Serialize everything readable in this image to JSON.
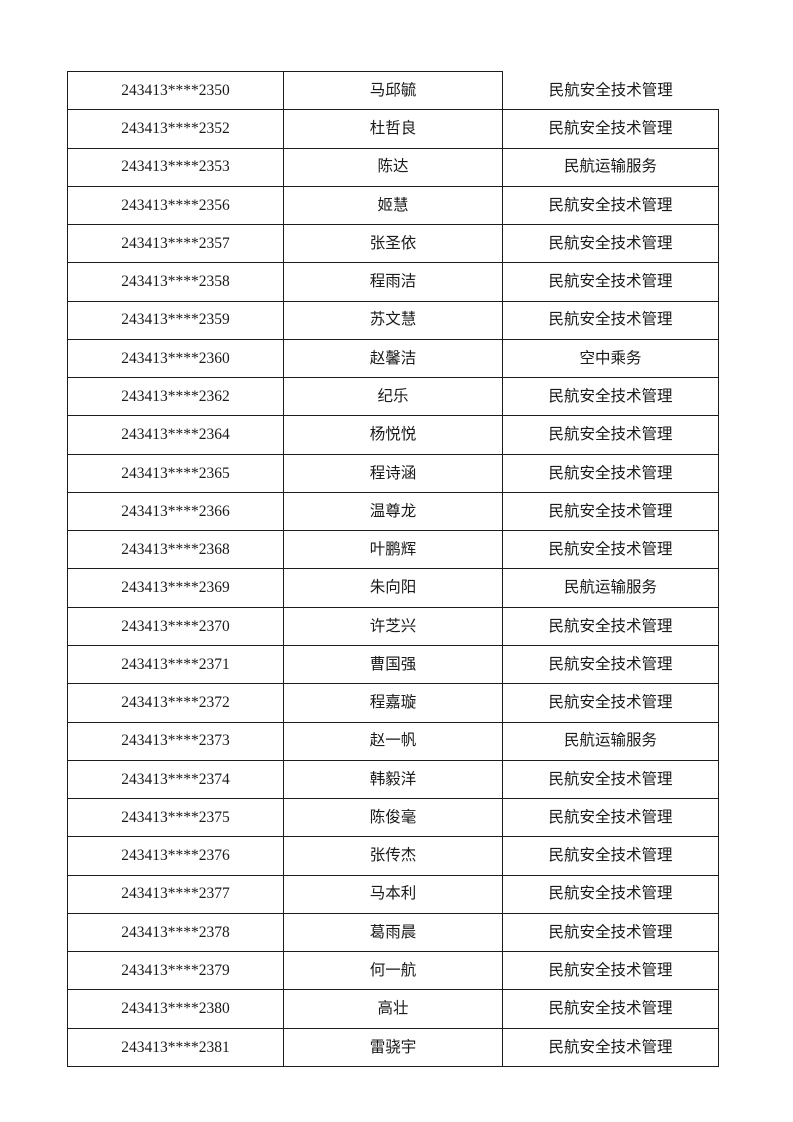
{
  "page": {
    "kind": "document-table-page"
  },
  "colors": {
    "page_background": "#ffffff",
    "border": "#1c1c1c",
    "text": "#1a1a1a"
  },
  "table": {
    "columns": [
      "id",
      "name",
      "major"
    ],
    "rows": [
      {
        "id": "243413****2350",
        "name": "马邱毓",
        "major": "民航安全技术管理"
      },
      {
        "id": "243413****2352",
        "name": "杜哲良",
        "major": "民航安全技术管理"
      },
      {
        "id": "243413****2353",
        "name": "陈达",
        "major": "民航运输服务"
      },
      {
        "id": "243413****2356",
        "name": "姬慧",
        "major": "民航安全技术管理"
      },
      {
        "id": "243413****2357",
        "name": "张圣依",
        "major": "民航安全技术管理"
      },
      {
        "id": "243413****2358",
        "name": "程雨洁",
        "major": "民航安全技术管理"
      },
      {
        "id": "243413****2359",
        "name": "苏文慧",
        "major": "民航安全技术管理"
      },
      {
        "id": "243413****2360",
        "name": "赵馨洁",
        "major": "空中乘务"
      },
      {
        "id": "243413****2362",
        "name": "纪乐",
        "major": "民航安全技术管理"
      },
      {
        "id": "243413****2364",
        "name": "杨悦悦",
        "major": "民航安全技术管理"
      },
      {
        "id": "243413****2365",
        "name": "程诗涵",
        "major": "民航安全技术管理"
      },
      {
        "id": "243413****2366",
        "name": "温尊龙",
        "major": "民航安全技术管理"
      },
      {
        "id": "243413****2368",
        "name": "叶鹏辉",
        "major": "民航安全技术管理"
      },
      {
        "id": "243413****2369",
        "name": "朱向阳",
        "major": "民航运输服务"
      },
      {
        "id": "243413****2370",
        "name": "许芝兴",
        "major": "民航安全技术管理"
      },
      {
        "id": "243413****2371",
        "name": "曹国强",
        "major": "民航安全技术管理"
      },
      {
        "id": "243413****2372",
        "name": "程嘉璇",
        "major": "民航安全技术管理"
      },
      {
        "id": "243413****2373",
        "name": "赵一帆",
        "major": "民航运输服务"
      },
      {
        "id": "243413****2374",
        "name": "韩毅洋",
        "major": "民航安全技术管理"
      },
      {
        "id": "243413****2375",
        "name": "陈俊毫",
        "major": "民航安全技术管理"
      },
      {
        "id": "243413****2376",
        "name": "张传杰",
        "major": "民航安全技术管理"
      },
      {
        "id": "243413****2377",
        "name": "马本利",
        "major": "民航安全技术管理"
      },
      {
        "id": "243413****2378",
        "name": "葛雨晨",
        "major": "民航安全技术管理"
      },
      {
        "id": "243413****2379",
        "name": "何一航",
        "major": "民航安全技术管理"
      },
      {
        "id": "243413****2380",
        "name": "高壮",
        "major": "民航安全技术管理"
      },
      {
        "id": "243413****2381",
        "name": "雷骁宇",
        "major": "民航安全技术管理"
      }
    ]
  }
}
